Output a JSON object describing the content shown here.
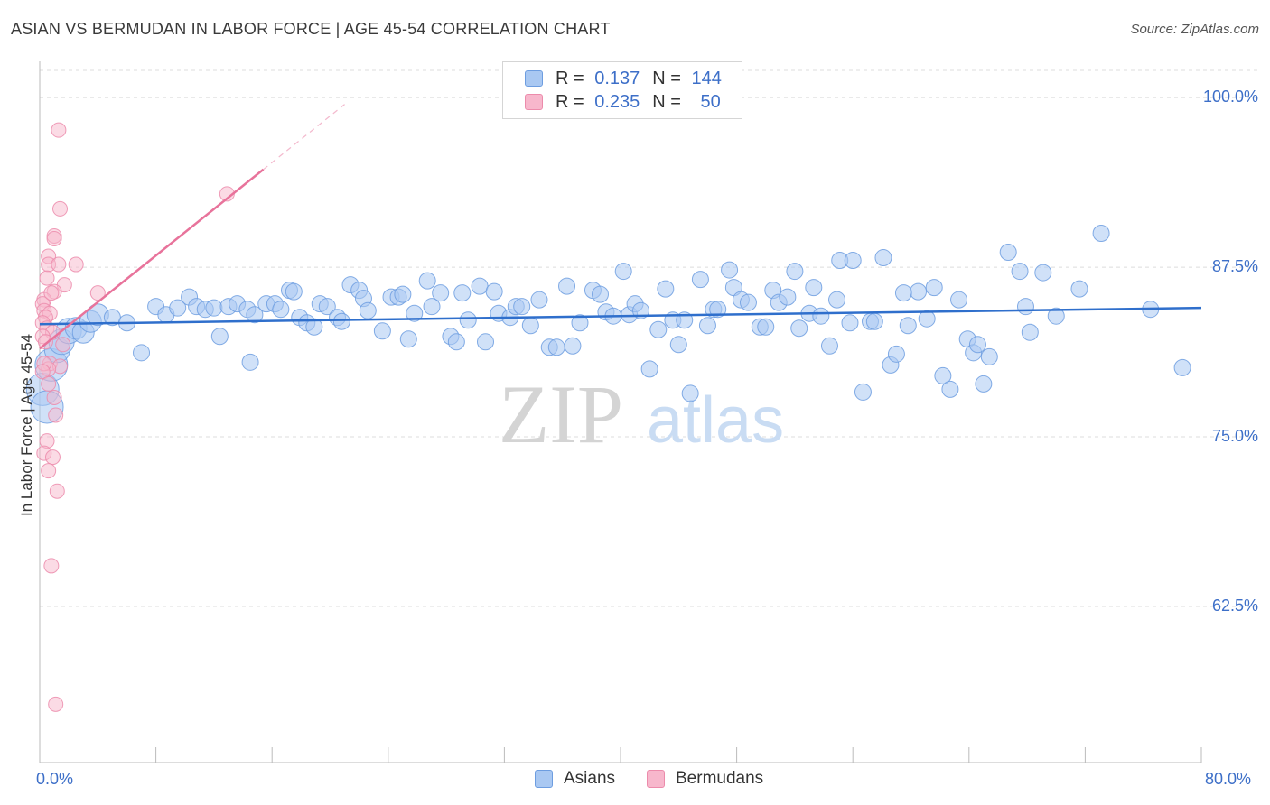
{
  "header": {
    "title": "ASIAN VS BERMUDAN IN LABOR FORCE | AGE 45-54 CORRELATION CHART",
    "source": "Source: ZipAtlas.com"
  },
  "legend": {
    "asian": {
      "r_label": "R =",
      "r_value": "0.137",
      "n_label": "N =",
      "n_value": "144"
    },
    "bermudan": {
      "r_label": "R =",
      "r_value": "0.235",
      "n_label": "N =",
      "n_value": "50"
    }
  },
  "bottom_legend": {
    "asians": "Asians",
    "bermudans": "Bermudans"
  },
  "colors": {
    "asian_fill": "#a9c8f2",
    "asian_stroke": "#6d9de0",
    "asian_line": "#2f6fcc",
    "bermudan_fill": "#f7b7cc",
    "bermudan_stroke": "#ec8bab",
    "bermudan_line": "#e8739b",
    "grid": "#dcdcdc",
    "tick_text": "#3d6fc8"
  },
  "watermark": {
    "zip": "ZIP",
    "atlas": "atlas"
  },
  "chart_data": {
    "type": "scatter",
    "title": "ASIAN VS BERMUDAN IN LABOR FORCE | AGE 45-54 CORRELATION CHART",
    "xlabel": "",
    "ylabel": "In Labor Force | Age 45-54",
    "xlim": [
      0,
      80
    ],
    "ylim": [
      51,
      102
    ],
    "x_tick_labels": [
      "0.0%",
      "80.0%"
    ],
    "y_ticks": [
      100.0,
      87.5,
      75.0,
      62.5
    ],
    "y_tick_labels": [
      "100.0%",
      "87.5%",
      "75.0%",
      "62.5%"
    ],
    "series": [
      {
        "name": "Asians",
        "r": 0.137,
        "n": 144,
        "trend": {
          "x0": 0,
          "y0": 83.3,
          "x1": 80,
          "y1": 84.5
        },
        "points": [
          [
            0.2,
            78.5
          ],
          [
            0.5,
            77.2
          ],
          [
            0.8,
            80.3
          ],
          [
            1.2,
            81.4
          ],
          [
            1.5,
            82.0
          ],
          [
            2.0,
            82.8
          ],
          [
            2.5,
            83.0
          ],
          [
            3.0,
            82.7
          ],
          [
            3.5,
            83.5
          ],
          [
            4.0,
            84.0
          ],
          [
            5.0,
            83.8
          ],
          [
            6.0,
            83.4
          ],
          [
            7.0,
            81.2
          ],
          [
            8.0,
            84.6
          ],
          [
            8.7,
            84.0
          ],
          [
            9.5,
            84.5
          ],
          [
            10.3,
            85.3
          ],
          [
            10.8,
            84.6
          ],
          [
            11.4,
            84.4
          ],
          [
            12.0,
            84.5
          ],
          [
            12.4,
            82.4
          ],
          [
            13.0,
            84.6
          ],
          [
            13.6,
            84.8
          ],
          [
            14.3,
            84.4
          ],
          [
            14.8,
            84.0
          ],
          [
            14.5,
            80.5
          ],
          [
            15.6,
            84.8
          ],
          [
            16.2,
            84.8
          ],
          [
            16.6,
            84.4
          ],
          [
            17.2,
            85.8
          ],
          [
            17.5,
            85.7
          ],
          [
            17.9,
            83.8
          ],
          [
            18.4,
            83.4
          ],
          [
            18.9,
            83.1
          ],
          [
            19.3,
            84.8
          ],
          [
            19.8,
            84.6
          ],
          [
            20.5,
            83.8
          ],
          [
            20.8,
            83.5
          ],
          [
            21.4,
            86.2
          ],
          [
            22.0,
            85.8
          ],
          [
            22.3,
            85.2
          ],
          [
            22.6,
            84.3
          ],
          [
            23.6,
            82.8
          ],
          [
            24.2,
            85.3
          ],
          [
            24.7,
            85.3
          ],
          [
            25.0,
            85.5
          ],
          [
            25.4,
            82.2
          ],
          [
            25.8,
            84.1
          ],
          [
            26.7,
            86.5
          ],
          [
            27.0,
            84.6
          ],
          [
            27.6,
            85.6
          ],
          [
            28.3,
            82.4
          ],
          [
            28.7,
            82.0
          ],
          [
            29.1,
            85.6
          ],
          [
            29.5,
            83.6
          ],
          [
            30.3,
            86.1
          ],
          [
            30.7,
            82.0
          ],
          [
            31.3,
            85.7
          ],
          [
            31.6,
            84.1
          ],
          [
            32.4,
            83.8
          ],
          [
            32.8,
            84.6
          ],
          [
            33.2,
            84.6
          ],
          [
            33.8,
            83.2
          ],
          [
            34.4,
            85.1
          ],
          [
            35.1,
            81.6
          ],
          [
            35.6,
            81.6
          ],
          [
            36.3,
            86.1
          ],
          [
            36.7,
            81.7
          ],
          [
            37.2,
            83.4
          ],
          [
            38.1,
            85.8
          ],
          [
            38.6,
            85.5
          ],
          [
            39.0,
            84.2
          ],
          [
            39.5,
            83.9
          ],
          [
            40.2,
            87.2
          ],
          [
            40.6,
            84.0
          ],
          [
            41.0,
            84.8
          ],
          [
            41.4,
            84.3
          ],
          [
            42.0,
            80.0
          ],
          [
            42.6,
            82.9
          ],
          [
            43.1,
            85.9
          ],
          [
            43.6,
            83.6
          ],
          [
            44.0,
            81.8
          ],
          [
            44.4,
            83.6
          ],
          [
            44.8,
            78.2
          ],
          [
            45.5,
            86.6
          ],
          [
            46.0,
            83.2
          ],
          [
            46.4,
            84.4
          ],
          [
            46.7,
            84.4
          ],
          [
            47.5,
            87.3
          ],
          [
            47.8,
            86.0
          ],
          [
            48.3,
            85.1
          ],
          [
            48.8,
            84.9
          ],
          [
            49.6,
            83.1
          ],
          [
            50.0,
            83.1
          ],
          [
            50.5,
            85.8
          ],
          [
            50.9,
            84.9
          ],
          [
            51.5,
            85.3
          ],
          [
            52.0,
            87.2
          ],
          [
            52.3,
            83.0
          ],
          [
            53.0,
            84.1
          ],
          [
            53.3,
            86.0
          ],
          [
            53.8,
            83.9
          ],
          [
            54.4,
            81.7
          ],
          [
            54.9,
            85.1
          ],
          [
            55.1,
            88.0
          ],
          [
            56.0,
            88.0
          ],
          [
            55.8,
            83.4
          ],
          [
            56.7,
            78.3
          ],
          [
            57.2,
            83.5
          ],
          [
            57.5,
            83.5
          ],
          [
            58.1,
            88.2
          ],
          [
            58.6,
            80.3
          ],
          [
            59.0,
            81.1
          ],
          [
            59.5,
            85.6
          ],
          [
            59.8,
            83.2
          ],
          [
            60.5,
            85.7
          ],
          [
            61.1,
            83.7
          ],
          [
            61.6,
            86.0
          ],
          [
            62.2,
            79.5
          ],
          [
            62.7,
            78.5
          ],
          [
            63.3,
            85.1
          ],
          [
            63.9,
            82.2
          ],
          [
            64.3,
            81.2
          ],
          [
            64.6,
            81.8
          ],
          [
            65.0,
            78.9
          ],
          [
            65.4,
            80.9
          ],
          [
            66.7,
            88.6
          ],
          [
            67.5,
            87.2
          ],
          [
            67.9,
            84.6
          ],
          [
            68.2,
            82.7
          ],
          [
            69.1,
            87.1
          ],
          [
            70.0,
            83.9
          ],
          [
            71.6,
            85.9
          ],
          [
            73.1,
            90.0
          ],
          [
            76.5,
            84.4
          ],
          [
            78.7,
            80.1
          ]
        ]
      },
      {
        "name": "Bermudans",
        "r": 0.235,
        "n": 50,
        "trend": {
          "x0": 0,
          "y0": 81.5,
          "x1": 15.4,
          "y1": 94.7,
          "dash_to": {
            "x": 21,
            "y": 99.5
          }
        },
        "points": [
          [
            1.3,
            97.6
          ],
          [
            1.4,
            91.8
          ],
          [
            12.9,
            92.9
          ],
          [
            1.0,
            89.8
          ],
          [
            1.0,
            89.6
          ],
          [
            0.6,
            88.3
          ],
          [
            0.6,
            87.7
          ],
          [
            2.5,
            87.7
          ],
          [
            1.3,
            87.7
          ],
          [
            0.5,
            86.7
          ],
          [
            1.7,
            86.2
          ],
          [
            4.0,
            85.6
          ],
          [
            1.0,
            85.7
          ],
          [
            0.3,
            85.1
          ],
          [
            0.2,
            84.8
          ],
          [
            0.3,
            84.3
          ],
          [
            0.7,
            84.1
          ],
          [
            0.4,
            83.8
          ],
          [
            0.2,
            83.4
          ],
          [
            0.5,
            83.0
          ],
          [
            0.9,
            82.7
          ],
          [
            0.2,
            82.4
          ],
          [
            0.7,
            80.4
          ],
          [
            1.4,
            80.2
          ],
          [
            0.6,
            80.0
          ],
          [
            0.3,
            80.4
          ],
          [
            0.2,
            79.8
          ],
          [
            0.6,
            78.9
          ],
          [
            1.0,
            77.9
          ],
          [
            1.1,
            76.6
          ],
          [
            0.5,
            74.7
          ],
          [
            0.3,
            73.8
          ],
          [
            0.9,
            73.5
          ],
          [
            0.6,
            72.5
          ],
          [
            1.2,
            71.0
          ],
          [
            0.8,
            65.5
          ],
          [
            1.1,
            55.3
          ],
          [
            1.6,
            81.8
          ],
          [
            0.4,
            82.0
          ],
          [
            0.8,
            85.6
          ]
        ]
      }
    ]
  }
}
